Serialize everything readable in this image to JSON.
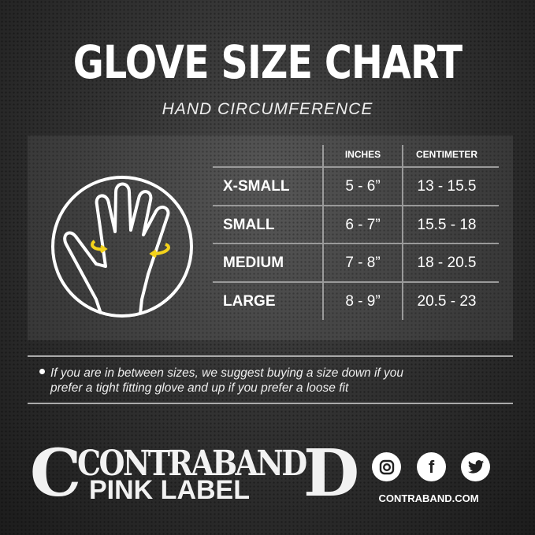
{
  "title": "GLOVE SIZE CHART",
  "subtitle": "HAND CIRCUMFERENCE",
  "table": {
    "headers": [
      "",
      "INCHES",
      "CENTIMETER"
    ],
    "rows": [
      {
        "size": "X-SMALL",
        "inches": "5 - 6”",
        "cm": "13 - 15.5"
      },
      {
        "size": "SMALL",
        "inches": "6 - 7”",
        "cm": "15.5 - 18"
      },
      {
        "size": "MEDIUM",
        "inches": "7 - 8”",
        "cm": "18 - 20.5"
      },
      {
        "size": "LARGE",
        "inches": "8 - 9”",
        "cm": "20.5 - 23"
      }
    ]
  },
  "note": {
    "line1": "If you are in between sizes, we suggest buying a size down if you",
    "line2": "prefer a tight fitting glove and up if you prefer a loose fit"
  },
  "brand": {
    "logo_text": "CONTRABAND",
    "sub_label": "PINK LABEL",
    "website": "CONTRABAND.COM"
  },
  "social": [
    {
      "icon": "instagram-icon"
    },
    {
      "icon": "facebook-icon",
      "glyph": "f"
    },
    {
      "icon": "twitter-icon"
    }
  ],
  "colors": {
    "accent": "#f4d31b",
    "background": "#333333",
    "text": "#ffffff"
  }
}
